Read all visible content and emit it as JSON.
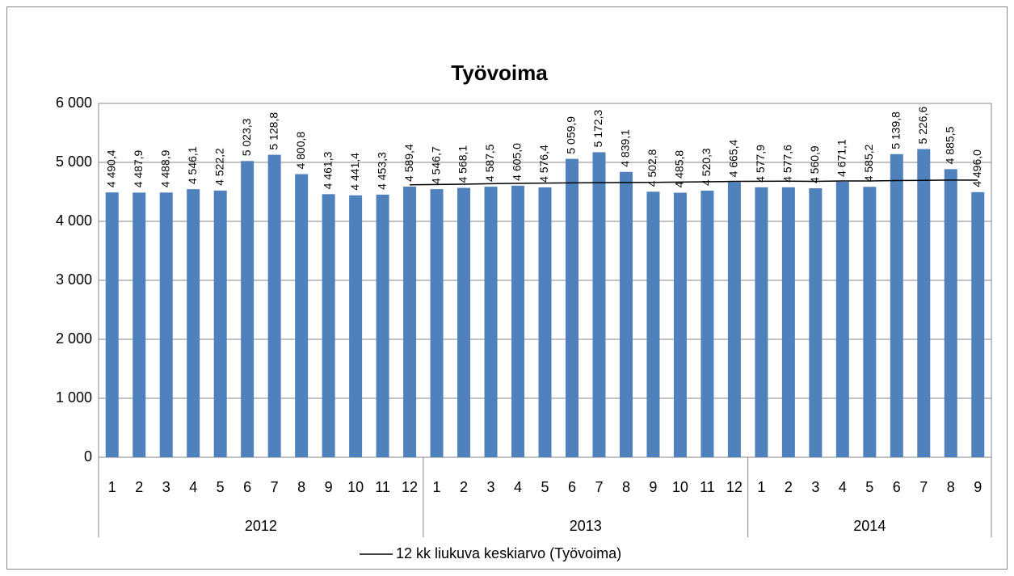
{
  "chart_data": {
    "type": "bar",
    "title": "Työvoima",
    "category_groups": [
      {
        "name": "2012",
        "categories": [
          "1",
          "2",
          "3",
          "4",
          "5",
          "6",
          "7",
          "8",
          "9",
          "10",
          "11",
          "12"
        ]
      },
      {
        "name": "2013",
        "categories": [
          "1",
          "2",
          "3",
          "4",
          "5",
          "6",
          "7",
          "8",
          "9",
          "10",
          "11",
          "12"
        ]
      },
      {
        "name": "2014",
        "categories": [
          "1",
          "2",
          "3",
          "4",
          "5",
          "6",
          "7",
          "8",
          "9"
        ]
      }
    ],
    "series": [
      {
        "name": "Työvoima",
        "type": "bar",
        "color": "#4f81bd",
        "show_in_legend": false,
        "values": [
          4490.4,
          4487.9,
          4488.9,
          4546.1,
          4522.2,
          5023.3,
          5128.8,
          4800.8,
          4461.3,
          4441.4,
          4453.3,
          4589.4,
          4546.7,
          4568.1,
          4587.5,
          4605.0,
          4576.4,
          5059.9,
          5172.3,
          4839.1,
          4502.8,
          4485.8,
          4520.3,
          4665.4,
          4577.9,
          4577.6,
          4560.9,
          4671.1,
          4585.2,
          5139.8,
          5226.6,
          4885.5,
          4496.0
        ],
        "value_labels": [
          "4 490,4",
          "4 487,9",
          "4 488,9",
          "4 546,1",
          "4 522,2",
          "5 023,3",
          "5 128,8",
          "4 800,8",
          "4 461,3",
          "4 441,4",
          "4 453,3",
          "4 589,4",
          "4 546,7",
          "4 568,1",
          "4 587,5",
          "4 605,0",
          "4 576,4",
          "5 059,9",
          "5 172,3",
          "4 839,1",
          "4 502,8",
          "4 485,8",
          "4 520,3",
          "4 665,4",
          "4 577,9",
          "4 577,6",
          "4 560,9",
          "4 671,1",
          "4 585,2",
          "5 139,8",
          "5 226,6",
          "4 885,5",
          "4 496,0"
        ]
      },
      {
        "name": "12 kk liukuva keskiarvo (Työvoima)",
        "type": "line",
        "color": "#000000",
        "show_in_legend": true,
        "values": [
          null,
          null,
          null,
          null,
          null,
          null,
          null,
          null,
          null,
          null,
          null,
          4619.5,
          4624.2,
          4630.9,
          4639.1,
          4644.0,
          4648.5,
          4651.6,
          4655.2,
          4658.4,
          4661.8,
          4665.5,
          4671.1,
          4677.4,
          4680.0,
          4680.8,
          4678.6,
          4684.1,
          4684.9,
          4691.5,
          4696.0,
          4699.9,
          4699.3
        ]
      }
    ],
    "ylim": [
      0,
      6000
    ],
    "yticks": [
      0,
      {
        "value": 1000,
        "label": "1 000"
      },
      {
        "value": 2000,
        "label": "2 000"
      },
      {
        "value": 3000,
        "label": "3 000"
      },
      {
        "value": 4000,
        "label": "4 000"
      },
      {
        "value": 5000,
        "label": "5 000"
      },
      {
        "value": 6000,
        "label": "6 000"
      }
    ],
    "grid": true,
    "legend": "bottom"
  }
}
